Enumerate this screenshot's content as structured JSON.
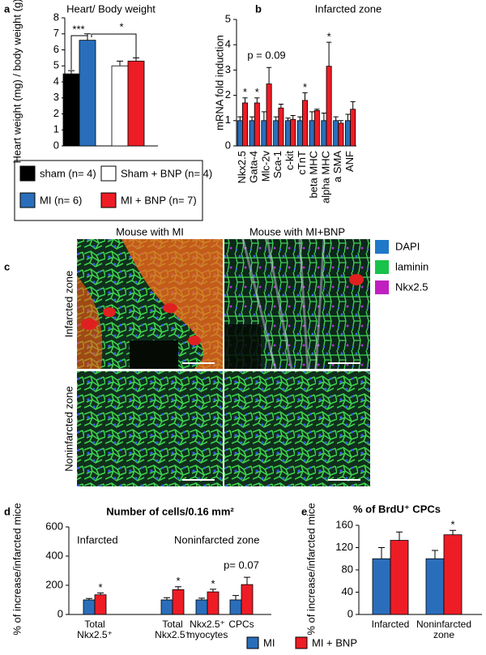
{
  "panel_labels": [
    "a",
    "b",
    "c",
    "d",
    "e"
  ],
  "chart_data": [
    {
      "type": "bar",
      "title": "Heart/ Body weight",
      "y_label": "Heart weight (mg) / body weight (g)",
      "categories": [
        null
      ],
      "ylim": [
        0,
        8
      ],
      "yticks": [
        0,
        1,
        2,
        3,
        4,
        5,
        6,
        7,
        8
      ],
      "series": [
        {
          "name": "sham (n= 4)",
          "color": "#000000",
          "values": [
            4.5
          ],
          "errors": [
            0.2
          ]
        },
        {
          "name": "MI (n= 6)",
          "color": "#2a6ebb",
          "values": [
            6.6
          ],
          "errors": [
            0.4
          ]
        },
        {
          "name": "Sham + BNP (n= 4)",
          "color": "#ffffff",
          "values": [
            5.0
          ],
          "errors": [
            0.3
          ]
        },
        {
          "name": "MI + BNP (n= 7)",
          "color": "#ee1c25",
          "values": [
            5.3
          ],
          "errors": [
            0.2
          ]
        }
      ],
      "annotations": [
        "***",
        "*"
      ]
    },
    {
      "type": "bar",
      "title": "Infarcted zone",
      "y_label": "mRNA fold  induction",
      "categories": [
        "Nkx2.5",
        "Gata-4",
        "Mlc-2v",
        "Sca-1",
        "c-kit",
        "cTnT",
        "beta MHC",
        "alpha MHC",
        "a SMA",
        "ANF"
      ],
      "ylim": [
        0,
        5
      ],
      "yticks": [
        0,
        1,
        2,
        3,
        4,
        5
      ],
      "series": [
        {
          "color": "#2a6ebb",
          "values": [
            1,
            1,
            1,
            1,
            1,
            1,
            1,
            1,
            1,
            1
          ],
          "errors": [
            0.15,
            0.15,
            0.35,
            0.15,
            0.1,
            0.15,
            0.35,
            0.3,
            0.15,
            0.25
          ]
        },
        {
          "color": "#ee1c25",
          "values": [
            1.7,
            1.7,
            2.45,
            1.5,
            1.05,
            1.8,
            1.4,
            3.15,
            0.9,
            1.45
          ],
          "errors": [
            0.2,
            0.2,
            0.65,
            0.15,
            0.15,
            0.3,
            0.05,
            0.95,
            0.1,
            0.3
          ]
        }
      ],
      "annotations": [
        "*",
        "*",
        "p = 0.09",
        "*",
        "*"
      ]
    },
    {
      "type": "bar",
      "title": "Number of cells/0.16 mm²",
      "y_label": "% of increase/infarcted mice",
      "group_labels": [
        "Infarcted",
        "Noninfarcted zone"
      ],
      "categories": [
        "Total\nNkx2.5⁺",
        "Total\nNkx2.5⁺",
        "Nkx2.5⁺\nmyocytes",
        "CPCs"
      ],
      "ylim": [
        0,
        600
      ],
      "yticks": [
        0,
        200,
        400,
        600
      ],
      "series": [
        {
          "name": "MI",
          "color": "#2a6ebb",
          "values": [
            100,
            100,
            100,
            100
          ],
          "errors": [
            10,
            15,
            12,
            30
          ]
        },
        {
          "name": "MI + BNP",
          "color": "#ee1c25",
          "values": [
            135,
            170,
            155,
            205
          ],
          "errors": [
            12,
            20,
            18,
            50
          ]
        }
      ],
      "annotations": [
        "*",
        "*",
        "*",
        "p= 0.07"
      ]
    },
    {
      "type": "bar",
      "title": "% of BrdU⁺ CPCs",
      "y_label": "% of increase/infarcted mice",
      "categories": [
        "Infarcted",
        "Noninfarcted\nzone"
      ],
      "ylim": [
        0,
        160
      ],
      "yticks": [
        0,
        40,
        80,
        120,
        160
      ],
      "series": [
        {
          "color": "#2a6ebb",
          "values": [
            100,
            100
          ],
          "errors": [
            20,
            15
          ]
        },
        {
          "color": "#ee1c25",
          "values": [
            133,
            143
          ],
          "errors": [
            15,
            8
          ]
        }
      ],
      "annotations": [
        "*"
      ]
    }
  ],
  "image_panel": {
    "columns": [
      "Mouse with MI",
      "Mouse with MI+BNP"
    ],
    "rows": [
      "Infarcted zone",
      "Noninfarcted  zone"
    ],
    "legend": [
      {
        "label": "DAPI",
        "color": "#1f78c8"
      },
      {
        "label": "laminin",
        "color": "#19c24a"
      },
      {
        "label": "Nkx2.5",
        "color": "#c020c0"
      }
    ]
  }
}
